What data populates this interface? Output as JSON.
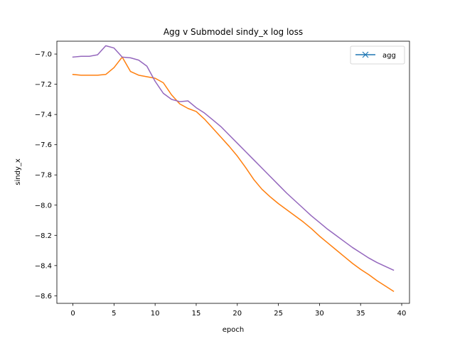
{
  "chart_data": {
    "type": "line",
    "title": "Agg v Submodel sindy_x log loss",
    "xlabel": "epoch",
    "ylabel": "sindy_x",
    "xlim": [
      -1.95,
      40.95
    ],
    "ylim": [
      -8.65,
      -6.915
    ],
    "xticks": [
      0,
      5,
      10,
      15,
      20,
      25,
      30,
      35,
      40
    ],
    "yticks": [
      -8.6,
      -8.4,
      -8.2,
      -8.0,
      -7.8,
      -7.6,
      -7.4,
      -7.2,
      -7.0
    ],
    "ytick_labels": [
      "−8.6",
      "−8.4",
      "−8.2",
      "−8.0",
      "−7.8",
      "−7.6",
      "−7.4",
      "−7.2",
      "−7.0"
    ],
    "legend": {
      "position": "top-right",
      "entries": [
        {
          "label": "agg",
          "color": "#1f77b4",
          "marker": "x"
        }
      ]
    },
    "grid": false,
    "series": [
      {
        "name": "agg",
        "color": "#1f77b4",
        "marker": "x",
        "x": [],
        "y": []
      },
      {
        "color": "#ff7f0e",
        "x": [
          0,
          1,
          2,
          3,
          4,
          5,
          6,
          7,
          8,
          9,
          10,
          11,
          12,
          13,
          14,
          15,
          16,
          17,
          18,
          19,
          20,
          21,
          22,
          23,
          24,
          25,
          26,
          27,
          28,
          29,
          30,
          31,
          32,
          33,
          34,
          35,
          36,
          37,
          38,
          39
        ],
        "y": [
          -7.135,
          -7.14,
          -7.14,
          -7.14,
          -7.135,
          -7.09,
          -7.02,
          -7.115,
          -7.14,
          -7.15,
          -7.16,
          -7.19,
          -7.27,
          -7.33,
          -7.36,
          -7.38,
          -7.43,
          -7.49,
          -7.55,
          -7.61,
          -7.675,
          -7.75,
          -7.83,
          -7.895,
          -7.945,
          -7.99,
          -8.03,
          -8.07,
          -8.11,
          -8.155,
          -8.205,
          -8.25,
          -8.295,
          -8.34,
          -8.385,
          -8.425,
          -8.46,
          -8.5,
          -8.535,
          -8.57
        ]
      },
      {
        "color": "#9467bd",
        "x": [
          0,
          1,
          2,
          3,
          4,
          5,
          6,
          7,
          8,
          9,
          10,
          11,
          12,
          13,
          14,
          15,
          16,
          17,
          18,
          19,
          20,
          21,
          22,
          23,
          24,
          25,
          26,
          27,
          28,
          29,
          30,
          31,
          32,
          33,
          34,
          35,
          36,
          37,
          38,
          39
        ],
        "y": [
          -7.02,
          -7.015,
          -7.015,
          -7.005,
          -6.945,
          -6.96,
          -7.02,
          -7.025,
          -7.04,
          -7.08,
          -7.18,
          -7.26,
          -7.3,
          -7.315,
          -7.31,
          -7.355,
          -7.39,
          -7.435,
          -7.48,
          -7.535,
          -7.59,
          -7.645,
          -7.7,
          -7.755,
          -7.81,
          -7.865,
          -7.92,
          -7.97,
          -8.02,
          -8.07,
          -8.115,
          -8.16,
          -8.2,
          -8.24,
          -8.28,
          -8.315,
          -8.35,
          -8.38,
          -8.405,
          -8.43
        ]
      }
    ]
  }
}
